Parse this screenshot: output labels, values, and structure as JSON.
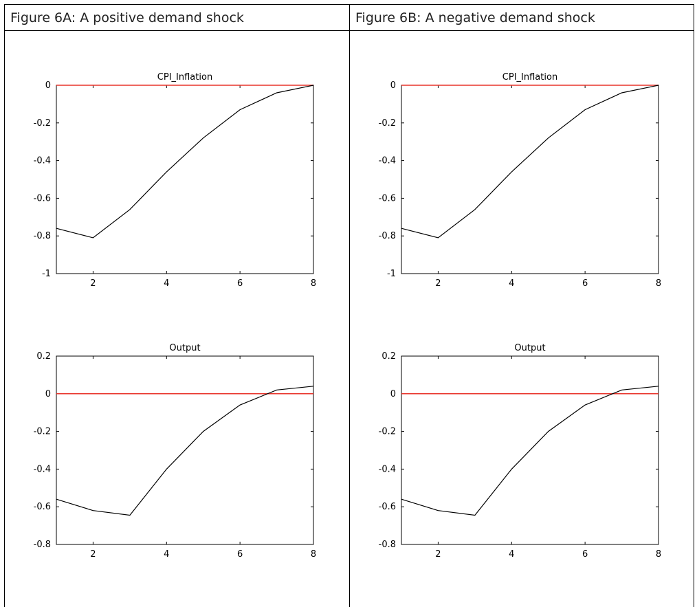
{
  "panels": [
    {
      "caption": "Figure 6A: A positive demand shock",
      "charts": [
        {
          "title": "CPI_Inflation"
        },
        {
          "title": "Output"
        }
      ]
    },
    {
      "caption": "Figure 6B: A negative demand shock",
      "charts": [
        {
          "title": "CPI_Inflation"
        },
        {
          "title": "Output"
        }
      ]
    }
  ],
  "colors": {
    "response_line": "#000000",
    "zero_line": "#e8332a",
    "axes": "#000000"
  },
  "chart_data": [
    {
      "type": "line",
      "panel": "Figure 6A",
      "title": "CPI_Inflation",
      "x": [
        1,
        2,
        3,
        4,
        5,
        6,
        7,
        8
      ],
      "series": [
        {
          "values": [
            -0.76,
            -0.81,
            -0.66,
            -0.46,
            -0.28,
            -0.13,
            -0.04,
            0.0
          ]
        }
      ],
      "reference_line": 0,
      "xlim": [
        1,
        8
      ],
      "ylim": [
        -1,
        0
      ],
      "xticks": [
        2,
        4,
        6,
        8
      ],
      "yticks": [
        -1,
        -0.8,
        -0.6,
        -0.4,
        -0.2,
        0
      ],
      "xlabel": "",
      "ylabel": ""
    },
    {
      "type": "line",
      "panel": "Figure 6A",
      "title": "Output",
      "x": [
        1,
        2,
        3,
        4,
        5,
        6,
        7,
        8
      ],
      "series": [
        {
          "values": [
            -0.56,
            -0.62,
            -0.645,
            -0.4,
            -0.2,
            -0.06,
            0.02,
            0.04
          ]
        }
      ],
      "reference_line": 0,
      "xlim": [
        1,
        8
      ],
      "ylim": [
        -0.8,
        0.2
      ],
      "xticks": [
        2,
        4,
        6,
        8
      ],
      "yticks": [
        -0.8,
        -0.6,
        -0.4,
        -0.2,
        0,
        0.2
      ],
      "xlabel": "",
      "ylabel": ""
    },
    {
      "type": "line",
      "panel": "Figure 6B",
      "title": "CPI_Inflation",
      "x": [
        1,
        2,
        3,
        4,
        5,
        6,
        7,
        8
      ],
      "series": [
        {
          "values": [
            -0.76,
            -0.81,
            -0.66,
            -0.46,
            -0.28,
            -0.13,
            -0.04,
            0.0
          ]
        }
      ],
      "reference_line": 0,
      "xlim": [
        1,
        8
      ],
      "ylim": [
        -1,
        0
      ],
      "xticks": [
        2,
        4,
        6,
        8
      ],
      "yticks": [
        -1,
        -0.8,
        -0.6,
        -0.4,
        -0.2,
        0
      ],
      "xlabel": "",
      "ylabel": ""
    },
    {
      "type": "line",
      "panel": "Figure 6B",
      "title": "Output",
      "x": [
        1,
        2,
        3,
        4,
        5,
        6,
        7,
        8
      ],
      "series": [
        {
          "values": [
            -0.56,
            -0.62,
            -0.645,
            -0.4,
            -0.2,
            -0.06,
            0.02,
            0.04
          ]
        }
      ],
      "reference_line": 0,
      "xlim": [
        1,
        8
      ],
      "ylim": [
        -0.8,
        0.2
      ],
      "xticks": [
        2,
        4,
        6,
        8
      ],
      "yticks": [
        -0.8,
        -0.6,
        -0.4,
        -0.2,
        0,
        0.2
      ],
      "xlabel": "",
      "ylabel": ""
    }
  ]
}
